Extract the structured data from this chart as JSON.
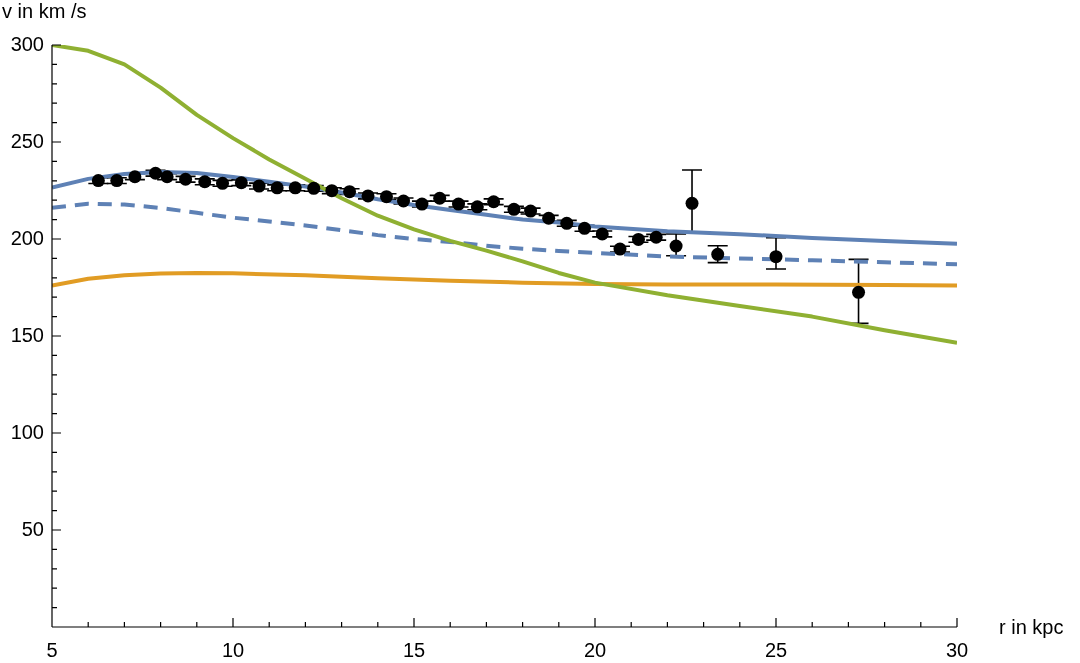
{
  "chart_data": {
    "type": "line",
    "xlabel": "r in kpc",
    "ylabel": "v in km /s",
    "xlim": [
      5,
      30
    ],
    "ylim": [
      0,
      300
    ],
    "xticks": [
      5,
      {
        "value": 6,
        "label": null
      },
      {
        "value": 7,
        "label": null
      },
      {
        "value": 8,
        "label": null
      },
      {
        "value": 9,
        "label": null
      },
      10,
      {
        "value": 11,
        "label": null
      },
      {
        "value": 12,
        "label": null
      },
      {
        "value": 13,
        "label": null
      },
      {
        "value": 14,
        "label": null
      },
      15,
      {
        "value": 16,
        "label": null
      },
      {
        "value": 17,
        "label": null
      },
      {
        "value": 18,
        "label": null
      },
      {
        "value": 19,
        "label": null
      },
      20,
      {
        "value": 21,
        "label": null
      },
      {
        "value": 22,
        "label": null
      },
      {
        "value": 23,
        "label": null
      },
      {
        "value": 24,
        "label": null
      },
      25,
      {
        "value": 26,
        "label": null
      },
      {
        "value": 27,
        "label": null
      },
      {
        "value": 28,
        "label": null
      },
      {
        "value": 29,
        "label": null
      },
      30
    ],
    "yticks": [
      {
        "value": 10,
        "label": null
      },
      {
        "value": 20,
        "label": null
      },
      {
        "value": 30,
        "label": null
      },
      {
        "value": 40,
        "label": null
      },
      50,
      {
        "value": 60,
        "label": null
      },
      {
        "value": 70,
        "label": null
      },
      {
        "value": 80,
        "label": null
      },
      {
        "value": 90,
        "label": null
      },
      100,
      {
        "value": 110,
        "label": null
      },
      {
        "value": 120,
        "label": null
      },
      {
        "value": 130,
        "label": null
      },
      {
        "value": 140,
        "label": null
      },
      150,
      {
        "value": 160,
        "label": null
      },
      {
        "value": 170,
        "label": null
      },
      {
        "value": 180,
        "label": null
      },
      {
        "value": 190,
        "label": null
      },
      200,
      {
        "value": 210,
        "label": null
      },
      {
        "value": 220,
        "label": null
      },
      {
        "value": 230,
        "label": null
      },
      {
        "value": 240,
        "label": null
      },
      250,
      {
        "value": 260,
        "label": null
      },
      {
        "value": 270,
        "label": null
      },
      {
        "value": 280,
        "label": null
      },
      {
        "value": 290,
        "label": null
      },
      300
    ],
    "grid": false,
    "legend": false,
    "series": [
      {
        "type": "line",
        "color": "#8fb032",
        "line_style": "solid",
        "marker": "none",
        "x": [
          5,
          6,
          7,
          8,
          9,
          10,
          11,
          12,
          13,
          14,
          15,
          16,
          17,
          18,
          19,
          20,
          22,
          24,
          26,
          28,
          30
        ],
        "values": [
          300,
          297,
          290,
          278,
          264,
          252,
          241,
          231,
          221,
          212,
          205,
          199,
          194,
          188.5,
          182.5,
          177.5,
          171,
          165.5,
          160,
          153,
          146.5
        ]
      },
      {
        "type": "line",
        "color": "#e19c24",
        "line_style": "solid",
        "marker": "none",
        "x": [
          5,
          6,
          7,
          8,
          9,
          10,
          12,
          14,
          16,
          18,
          20,
          22,
          25,
          28,
          30
        ],
        "values": [
          176,
          179.5,
          181.3,
          182.2,
          182.5,
          182.3,
          181.3,
          179.8,
          178.5,
          177.5,
          176.8,
          176.5,
          176.5,
          176.3,
          176
        ]
      },
      {
        "type": "line",
        "color": "#5e81b5",
        "line_style": "dashed",
        "marker": "none",
        "x": [
          5,
          6,
          7,
          8,
          9,
          10,
          11,
          12,
          13,
          14,
          15,
          16,
          17,
          18,
          19,
          20,
          22,
          24,
          26,
          28,
          30
        ],
        "values": [
          216.1,
          218.2,
          217.8,
          216,
          213.5,
          211,
          209,
          207,
          204.5,
          202,
          200,
          198.5,
          196.5,
          195,
          193.8,
          192.8,
          191,
          190,
          189,
          188,
          187
        ]
      },
      {
        "type": "line",
        "color": "#5e81b5",
        "line_style": "solid",
        "marker": "none",
        "x": [
          5,
          6,
          7,
          8,
          9,
          10,
          11,
          12,
          13,
          14,
          15,
          16,
          17,
          18,
          19,
          20,
          22,
          24,
          26,
          28,
          30
        ],
        "values": [
          226.5,
          231,
          233.5,
          234.5,
          234,
          232,
          229.5,
          227,
          224,
          220.5,
          217.5,
          215,
          212.5,
          210,
          208.5,
          206.5,
          204,
          202.5,
          200.5,
          199,
          197.5
        ]
      },
      {
        "type": "scatter",
        "color": "#000000",
        "marker": "circle",
        "x": [
          6.28,
          6.79,
          7.29,
          7.86,
          8.18,
          8.69,
          9.22,
          9.71,
          10.23,
          10.72,
          11.22,
          11.72,
          12.23,
          12.73,
          13.22,
          13.73,
          14.24,
          14.71,
          15.22,
          15.71,
          16.23,
          16.75,
          17.2,
          17.76,
          18.22,
          18.72,
          19.22,
          19.71,
          20.2,
          20.69,
          21.2,
          21.69,
          22.24,
          22.68,
          23.39,
          25.0,
          27.28
        ],
        "values": [
          230.1,
          230.1,
          232.1,
          233.9,
          232.1,
          230.8,
          229.5,
          228.7,
          229.0,
          227.3,
          226.4,
          226.4,
          226.1,
          224.9,
          224.4,
          222.2,
          221.8,
          219.6,
          218.0,
          221.0,
          218.0,
          216.6,
          219.2,
          215.3,
          214.4,
          210.7,
          208.1,
          205.5,
          202.6,
          194.8,
          199.8,
          200.9,
          196.4,
          218.4,
          192.1,
          190.9,
          172.5
        ],
        "errors": [
          1.5,
          1.5,
          1.5,
          1.5,
          1.5,
          1.5,
          1.5,
          1.5,
          1.5,
          1.5,
          1.5,
          1.5,
          1.5,
          1.5,
          1.5,
          1.5,
          1.5,
          1.5,
          1.5,
          1.5,
          1.5,
          1.5,
          1.5,
          1.5,
          1.5,
          1.5,
          1.5,
          1.5,
          1.5,
          1.5,
          1.5,
          1.5,
          [
            191.4,
            202.6
          ],
          [
            203.4,
            235.6
          ],
          [
            187.8,
            196.5
          ],
          [
            184.5,
            200.7
          ],
          [
            156.5,
            189.5
          ]
        ]
      }
    ]
  }
}
